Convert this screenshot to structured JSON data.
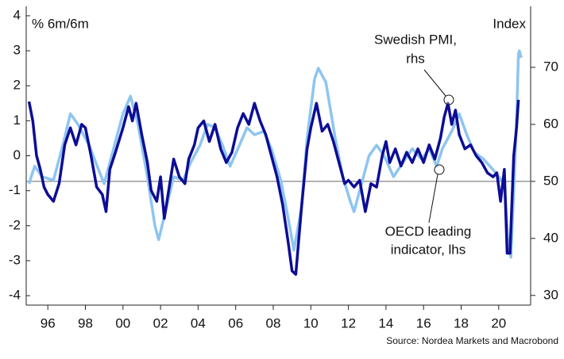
{
  "chart_data": {
    "type": "line",
    "left_axis_label": "% 6m/6m",
    "right_axis_label": "Index",
    "annotations": [
      [
        "Swedish PMI,",
        "rhs"
      ],
      [
        "OECD leading",
        "indicator, lhs"
      ]
    ],
    "source": "Source: Nordea Markets and Macrobond",
    "xlim": [
      1994.85,
      2021.7
    ],
    "xticks": [
      {
        "value": 1996,
        "label": "96"
      },
      {
        "value": 1998,
        "label": "98"
      },
      {
        "value": 2000,
        "label": "00"
      },
      {
        "value": 2002,
        "label": "02"
      },
      {
        "value": 2004,
        "label": "04"
      },
      {
        "value": 2006,
        "label": "06"
      },
      {
        "value": 2008,
        "label": "08"
      },
      {
        "value": 2010,
        "label": "10"
      },
      {
        "value": 2012,
        "label": "12"
      },
      {
        "value": 2014,
        "label": "14"
      },
      {
        "value": 2016,
        "label": "16"
      },
      {
        "value": 2018,
        "label": "18"
      },
      {
        "value": 2020,
        "label": "20"
      }
    ],
    "ylim": [
      -4.27,
      4.27
    ],
    "yticks": [
      -4,
      -3,
      -2,
      -1,
      0,
      1,
      2,
      3,
      4
    ],
    "y2lim": [
      28.3,
      80.7
    ],
    "y2ticks": [
      30,
      40,
      50,
      60,
      70
    ],
    "reference_line": {
      "value": 50,
      "axis": "y2",
      "color": "#666666"
    },
    "series": [
      {
        "color": "#8ec5f0",
        "axis": "y",
        "x": [
          1995.0,
          1995.3,
          1995.7,
          1996.3,
          1996.8,
          1997.2,
          1997.6,
          1998.2,
          1998.7,
          1999.0,
          1999.5,
          2000.0,
          2000.4,
          2000.8,
          2001.3,
          2001.7,
          2001.9,
          2002.3,
          2002.7,
          2003.2,
          2003.6,
          2004.1,
          2004.5,
          2004.9,
          2005.3,
          2005.7,
          2006.2,
          2006.6,
          2007.0,
          2007.5,
          2007.9,
          2008.4,
          2008.8,
          2009.1,
          2009.5,
          2009.8,
          2010.2,
          2010.4,
          2010.8,
          2011.3,
          2011.7,
          2012.1,
          2012.3,
          2012.7,
          2013.1,
          2013.5,
          2013.9,
          2014.4,
          2014.9,
          2015.4,
          2015.9,
          2016.3,
          2016.7,
          2017.0,
          2017.5,
          2017.9,
          2018.3,
          2018.7,
          2019.2,
          2019.7,
          2020.0,
          2020.3,
          2020.5,
          2020.65,
          2020.8,
          2020.95,
          2021.05,
          2021.1,
          2021.2
        ],
        "values": [
          -0.8,
          -0.3,
          -0.6,
          -0.7,
          0.3,
          1.2,
          0.9,
          0.3,
          -0.4,
          -0.8,
          0.2,
          1.2,
          1.7,
          0.9,
          -0.6,
          -2.0,
          -2.4,
          -1.5,
          -0.6,
          -0.7,
          -0.2,
          0.3,
          0.9,
          0.8,
          0.3,
          -0.3,
          0.3,
          0.8,
          0.6,
          0.7,
          0.2,
          -0.7,
          -1.8,
          -2.7,
          -1.5,
          0.5,
          2.2,
          2.5,
          2.1,
          0.5,
          -0.6,
          -1.3,
          -1.6,
          -0.8,
          0.0,
          0.3,
          0.0,
          -0.6,
          -0.2,
          0.2,
          -0.1,
          0.2,
          -0.3,
          0.2,
          0.7,
          1.2,
          0.6,
          0.1,
          -0.1,
          -0.4,
          -0.6,
          -0.8,
          -2.5,
          -2.9,
          -1.0,
          1.0,
          2.9,
          3.0,
          2.8
        ]
      },
      {
        "color": "#0d0d96",
        "axis": "y2",
        "x": [
          1995.0,
          1995.2,
          1995.4,
          1995.6,
          1995.8,
          1996.0,
          1996.3,
          1996.6,
          1996.9,
          1997.2,
          1997.5,
          1997.8,
          1998.0,
          1998.3,
          1998.6,
          1998.9,
          1999.1,
          1999.3,
          1999.6,
          2000.0,
          2000.3,
          2000.5,
          2000.7,
          2001.0,
          2001.3,
          2001.5,
          2001.8,
          2002.0,
          2002.2,
          2002.4,
          2002.7,
          2003.0,
          2003.3,
          2003.5,
          2003.8,
          2004.0,
          2004.3,
          2004.6,
          2004.9,
          2005.2,
          2005.5,
          2005.8,
          2006.1,
          2006.4,
          2006.7,
          2007.0,
          2007.3,
          2007.6,
          2007.9,
          2008.2,
          2008.5,
          2008.8,
          2009.0,
          2009.2,
          2009.5,
          2009.8,
          2010.0,
          2010.3,
          2010.6,
          2010.9,
          2011.2,
          2011.5,
          2011.8,
          2012.0,
          2012.3,
          2012.6,
          2012.9,
          2013.2,
          2013.5,
          2013.8,
          2014.0,
          2014.2,
          2014.5,
          2014.8,
          2015.1,
          2015.4,
          2015.7,
          2016.0,
          2016.3,
          2016.6,
          2016.9,
          2017.1,
          2017.3,
          2017.5,
          2017.7,
          2017.9,
          2018.2,
          2018.5,
          2018.8,
          2019.1,
          2019.4,
          2019.7,
          2019.9,
          2020.1,
          2020.3,
          2020.45,
          2020.6,
          2020.8,
          2020.95,
          2021.05
        ],
        "values": [
          64.0,
          60.6,
          54.5,
          52.1,
          49.0,
          47.7,
          46.5,
          49.6,
          56.4,
          59.4,
          56.4,
          60.0,
          59.4,
          54.5,
          49.0,
          47.7,
          44.7,
          52.1,
          55.1,
          59.4,
          63.1,
          60.6,
          63.7,
          58.2,
          53.3,
          48.4,
          46.5,
          50.8,
          43.5,
          47.7,
          53.9,
          50.8,
          49.6,
          53.9,
          56.4,
          59.4,
          60.6,
          57.0,
          60.0,
          55.7,
          53.3,
          55.1,
          59.4,
          61.9,
          60.0,
          63.7,
          60.6,
          58.2,
          54.5,
          50.8,
          45.9,
          39.2,
          34.3,
          33.7,
          45.3,
          55.7,
          59.4,
          63.7,
          58.8,
          60.0,
          57.0,
          53.3,
          49.6,
          50.2,
          49.0,
          50.2,
          44.7,
          49.6,
          49.0,
          54.5,
          57.0,
          53.3,
          55.7,
          52.7,
          55.1,
          53.3,
          55.7,
          53.3,
          56.4,
          53.9,
          57.6,
          61.3,
          63.7,
          60.0,
          62.5,
          58.2,
          55.7,
          56.4,
          54.5,
          53.3,
          51.5,
          50.8,
          51.5,
          46.5,
          52.1,
          37.4,
          37.4,
          54.5,
          59.4,
          64.3
        ]
      }
    ]
  }
}
